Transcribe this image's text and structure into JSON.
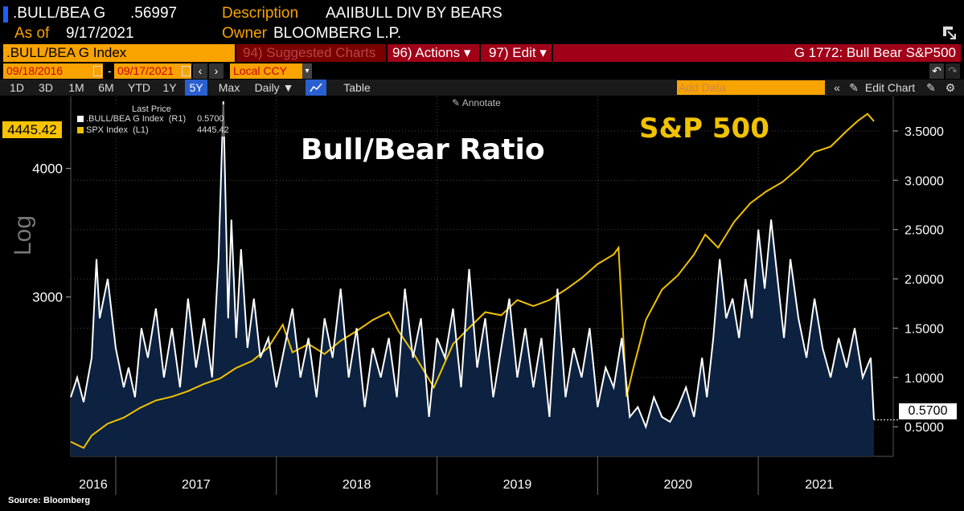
{
  "header": {
    "ticker": ".BULL/BEA G",
    "last_value": ".56997",
    "desc_label": "Description",
    "desc_value": "AAIIBULL DIV BY BEARS",
    "asof_label": "As of",
    "asof_value": "9/17/2021",
    "owner_label": "Owner",
    "owner_value": "BLOOMBERG L.P."
  },
  "toolbar": {
    "security": ".BULL/BEA G Index",
    "suggested": "94) Suggested Charts",
    "actions": "96) Actions ▾",
    "edit": "97) Edit ▾",
    "chart_title": "G 1772: Bull Bear S&P500",
    "start_date": "09/18/2016",
    "end_date": "09/17/2021",
    "currency": "Local CCY",
    "add_data_placeholder": "Add Data",
    "edit_chart": "Edit Chart",
    "periods": [
      "1D",
      "3D",
      "1M",
      "6M",
      "YTD",
      "1Y",
      "5Y",
      "Max"
    ],
    "frequency": "Daily ▼",
    "table_label": "Table",
    "annotate": "Annotate"
  },
  "legend": {
    "title": "Last Price",
    "items": [
      {
        "name": ".BULL/BEA G Index  (R1)",
        "value": "0.5700",
        "color": "#ffffff"
      },
      {
        "name": "SPX Index  (L1)",
        "value": "4445.42",
        "color": "#f0c200"
      }
    ]
  },
  "annotations": {
    "bull_bear": "Bull/Bear Ratio",
    "sp500": "S&P 500"
  },
  "footer": "Source: Bloomberg",
  "chart_data": {
    "type": "line",
    "x_axis": [
      "2016",
      "2017",
      "2018",
      "2019",
      "2020",
      "2021"
    ],
    "left_axis": {
      "label": "Log",
      "ticks": [
        "4000",
        "3000"
      ],
      "range": [
        2100,
        4700
      ],
      "scale": "log",
      "last_value": "4445.42"
    },
    "right_axis": {
      "ticks": [
        "3.5000",
        "3.0000",
        "2.5000",
        "2.0000",
        "1.5000",
        "1.0000",
        "0.5000"
      ],
      "range": [
        0.2,
        3.85
      ],
      "last_value": "0.5700"
    },
    "series": [
      {
        "name": "SPX Index",
        "axis": "left",
        "color": "#f0c200",
        "x": [
          2016.72,
          2016.8,
          2016.85,
          2016.95,
          2017.05,
          2017.15,
          2017.25,
          2017.35,
          2017.45,
          2017.55,
          2017.65,
          2017.75,
          2017.85,
          2017.95,
          2018.04,
          2018.1,
          2018.2,
          2018.3,
          2018.4,
          2018.5,
          2018.6,
          2018.7,
          2018.76,
          2018.85,
          2018.98,
          2019.1,
          2019.2,
          2019.3,
          2019.4,
          2019.5,
          2019.6,
          2019.7,
          2019.8,
          2019.9,
          2020.0,
          2020.1,
          2020.13,
          2020.18,
          2020.22,
          2020.3,
          2020.4,
          2020.5,
          2020.6,
          2020.67,
          2020.75,
          2020.85,
          2020.95,
          2021.05,
          2021.15,
          2021.25,
          2021.35,
          2021.45,
          2021.55,
          2021.62,
          2021.68,
          2021.72
        ],
        "values": [
          2170,
          2140,
          2200,
          2260,
          2290,
          2340,
          2380,
          2400,
          2430,
          2470,
          2500,
          2560,
          2600,
          2680,
          2820,
          2650,
          2700,
          2640,
          2720,
          2780,
          2850,
          2900,
          2780,
          2650,
          2450,
          2700,
          2800,
          2900,
          2880,
          2980,
          2940,
          2980,
          3050,
          3130,
          3230,
          3300,
          3350,
          2400,
          2550,
          2850,
          3050,
          3150,
          3300,
          3450,
          3350,
          3550,
          3700,
          3800,
          3880,
          4000,
          4150,
          4200,
          4350,
          4450,
          4520,
          4445
        ]
      },
      {
        "name": ".BULL/BEA G Index",
        "axis": "right",
        "color": "#ffffff",
        "x": [
          2016.72,
          2016.76,
          2016.8,
          2016.85,
          2016.88,
          2016.9,
          2016.95,
          2017.0,
          2017.05,
          2017.08,
          2017.12,
          2017.16,
          2017.2,
          2017.25,
          2017.3,
          2017.35,
          2017.4,
          2017.45,
          2017.5,
          2017.55,
          2017.6,
          2017.64,
          2017.67,
          2017.7,
          2017.72,
          2017.75,
          2017.78,
          2017.82,
          2017.86,
          2017.9,
          2017.95,
          2018.0,
          2018.05,
          2018.1,
          2018.15,
          2018.2,
          2018.25,
          2018.3,
          2018.35,
          2018.4,
          2018.45,
          2018.5,
          2018.55,
          2018.6,
          2018.65,
          2018.7,
          2018.75,
          2018.8,
          2018.85,
          2018.9,
          2018.95,
          2019.0,
          2019.05,
          2019.1,
          2019.15,
          2019.2,
          2019.25,
          2019.3,
          2019.35,
          2019.4,
          2019.45,
          2019.5,
          2019.55,
          2019.6,
          2019.65,
          2019.7,
          2019.75,
          2019.8,
          2019.85,
          2019.9,
          2019.95,
          2020.0,
          2020.05,
          2020.1,
          2020.15,
          2020.2,
          2020.25,
          2020.3,
          2020.35,
          2020.4,
          2020.45,
          2020.5,
          2020.55,
          2020.6,
          2020.65,
          2020.68,
          2020.72,
          2020.76,
          2020.8,
          2020.84,
          2020.88,
          2020.92,
          2020.96,
          2021.0,
          2021.04,
          2021.08,
          2021.12,
          2021.16,
          2021.2,
          2021.25,
          2021.3,
          2021.35,
          2021.4,
          2021.45,
          2021.5,
          2021.55,
          2021.6,
          2021.65,
          2021.7,
          2021.72
        ],
        "values": [
          0.8,
          1.0,
          0.75,
          1.2,
          2.2,
          1.6,
          2.0,
          1.3,
          0.9,
          1.1,
          0.8,
          1.5,
          1.2,
          1.7,
          1.0,
          1.5,
          0.9,
          1.8,
          1.1,
          1.6,
          1.0,
          2.2,
          3.8,
          1.6,
          2.6,
          1.4,
          2.3,
          1.3,
          1.8,
          1.2,
          1.4,
          0.9,
          1.3,
          1.7,
          1.0,
          1.4,
          0.8,
          1.6,
          1.2,
          1.9,
          1.0,
          1.5,
          0.7,
          1.3,
          1.0,
          1.4,
          0.8,
          1.9,
          1.2,
          1.6,
          0.6,
          1.4,
          1.2,
          1.7,
          0.9,
          2.1,
          1.1,
          1.6,
          0.8,
          1.3,
          1.8,
          1.0,
          1.5,
          0.9,
          1.4,
          0.6,
          1.9,
          0.8,
          1.3,
          1.0,
          1.5,
          0.7,
          1.1,
          0.9,
          1.4,
          0.6,
          0.7,
          0.5,
          0.8,
          0.6,
          0.55,
          0.7,
          0.9,
          0.6,
          1.2,
          0.8,
          1.4,
          2.2,
          1.6,
          1.8,
          1.4,
          2.0,
          1.6,
          2.5,
          1.9,
          2.6,
          2.0,
          1.4,
          2.2,
          1.6,
          1.2,
          1.8,
          1.3,
          1.0,
          1.4,
          1.1,
          1.5,
          1.0,
          1.2,
          0.57
        ]
      }
    ]
  }
}
